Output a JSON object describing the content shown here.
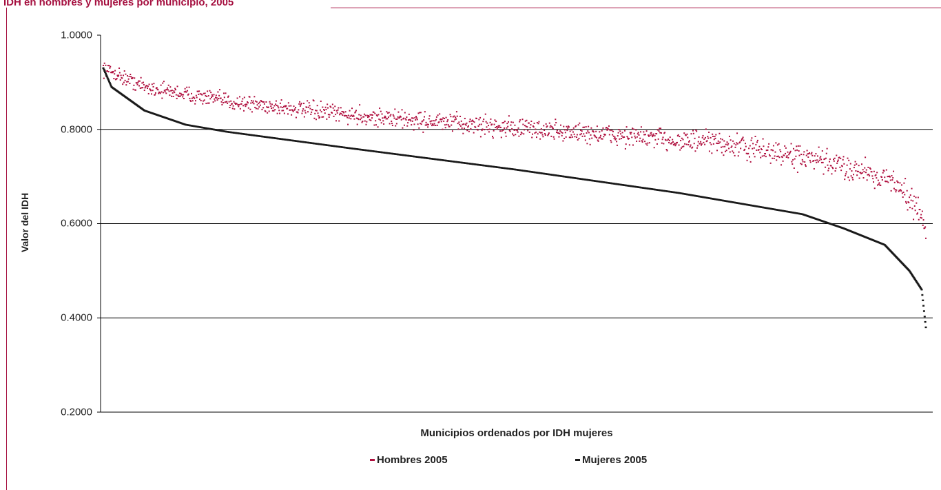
{
  "title": "IDH en hombres y mujeres por municipio, 2005",
  "colors": {
    "accent": "#a50f3f",
    "hombres": "#b0103f",
    "mujeres": "#1a1a1a",
    "grid": "#000000"
  },
  "chart_data": {
    "type": "scatter",
    "title": "IDH en hombres y mujeres por municipio, 2005",
    "xlabel": "Municipios ordenados por IDH mujeres",
    "ylabel": "Valor del IDH",
    "ylim": [
      0.2,
      1.0
    ],
    "yticks": [
      "0.2000",
      "0.4000",
      "0.6000",
      "0.8000",
      "1.0000"
    ],
    "grid": true,
    "legend_position": "bottom",
    "x": {
      "count": 1400,
      "description_note": ""
    },
    "series": [
      {
        "name": "Hombres 2005",
        "color": "#b0103f",
        "profile": [
          [
            0,
            0.93
          ],
          [
            0.05,
            0.89
          ],
          [
            0.15,
            0.86
          ],
          [
            0.3,
            0.83
          ],
          [
            0.45,
            0.81
          ],
          [
            0.6,
            0.79
          ],
          [
            0.75,
            0.77
          ],
          [
            0.85,
            0.74
          ],
          [
            0.93,
            0.71
          ],
          [
            0.97,
            0.68
          ],
          [
            1.0,
            0.6
          ]
        ],
        "spread": 0.015
      },
      {
        "name": "Mujeres 2005",
        "color": "#1a1a1a",
        "profile": [
          [
            0,
            0.93
          ],
          [
            0.01,
            0.89
          ],
          [
            0.05,
            0.84
          ],
          [
            0.1,
            0.81
          ],
          [
            0.15,
            0.795
          ],
          [
            0.3,
            0.76
          ],
          [
            0.5,
            0.715
          ],
          [
            0.7,
            0.665
          ],
          [
            0.85,
            0.62
          ],
          [
            0.9,
            0.59
          ],
          [
            0.95,
            0.555
          ],
          [
            0.98,
            0.5
          ],
          [
            0.995,
            0.46
          ],
          [
            1.0,
            0.38
          ]
        ]
      }
    ]
  }
}
